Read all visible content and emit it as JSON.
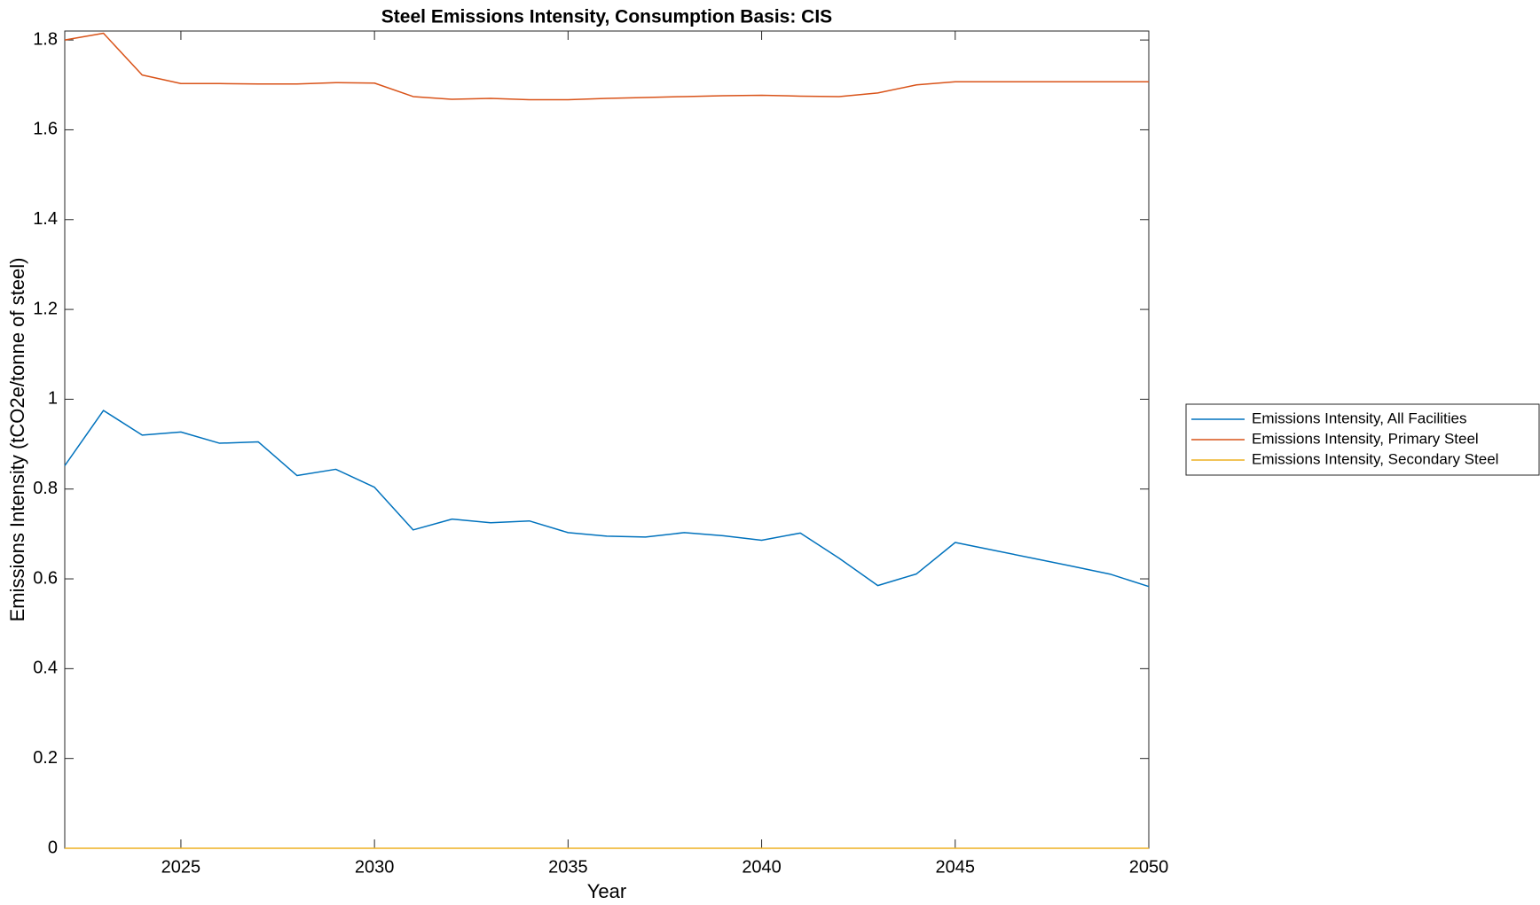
{
  "chart_data": {
    "type": "line",
    "title": "Steel Emissions Intensity, Consumption Basis: CIS",
    "xlabel": "Year",
    "ylabel": "Emissions Intensity (tCO2e/tonne of steel)",
    "xlim": [
      2022,
      2050
    ],
    "ylim": [
      0,
      1.82
    ],
    "xticks": [
      2025,
      2030,
      2035,
      2040,
      2045,
      2050
    ],
    "yticks": [
      0,
      0.2,
      0.4,
      0.6,
      0.8,
      1,
      1.2,
      1.4,
      1.6,
      1.8
    ],
    "ytick_labels": [
      "0",
      "0.2",
      "0.4",
      "0.6",
      "0.8",
      "1",
      "1.2",
      "1.4",
      "1.6",
      "1.8"
    ],
    "grid": false,
    "legend_position": "right",
    "x": [
      2022,
      2023,
      2024,
      2025,
      2026,
      2027,
      2028,
      2029,
      2030,
      2031,
      2032,
      2033,
      2034,
      2035,
      2036,
      2037,
      2038,
      2039,
      2040,
      2041,
      2042,
      2043,
      2044,
      2045,
      2046,
      2047,
      2048,
      2049,
      2050
    ],
    "series": [
      {
        "name": "Emissions Intensity, All Facilities",
        "color": "#0072BD",
        "values": [
          0.852,
          0.975,
          0.92,
          0.927,
          0.902,
          0.905,
          0.83,
          0.844,
          0.804,
          0.709,
          0.733,
          0.725,
          0.729,
          0.703,
          0.695,
          0.693,
          0.703,
          0.696,
          0.686,
          0.702,
          0.646,
          0.585,
          0.611,
          0.681,
          0.6635,
          0.646,
          0.6285,
          0.6105,
          0.583
        ]
      },
      {
        "name": "Emissions Intensity, Primary Steel",
        "color": "#D95319",
        "values": [
          1.8,
          1.815,
          1.722,
          1.703,
          1.703,
          1.702,
          1.702,
          1.705,
          1.704,
          1.674,
          1.668,
          1.67,
          1.667,
          1.667,
          1.67,
          1.672,
          1.674,
          1.676,
          1.677,
          1.675,
          1.674,
          1.682,
          1.7,
          1.707,
          1.707,
          1.707,
          1.707,
          1.707,
          1.707
        ]
      },
      {
        "name": "Emissions Intensity, Secondary Steel",
        "color": "#EDB120",
        "values": [
          0,
          0,
          0,
          0,
          0,
          0,
          0,
          0,
          0,
          0,
          0,
          0,
          0,
          0,
          0,
          0,
          0,
          0,
          0,
          0,
          0,
          0,
          0,
          0,
          0,
          0,
          0,
          0,
          0
        ]
      }
    ]
  }
}
